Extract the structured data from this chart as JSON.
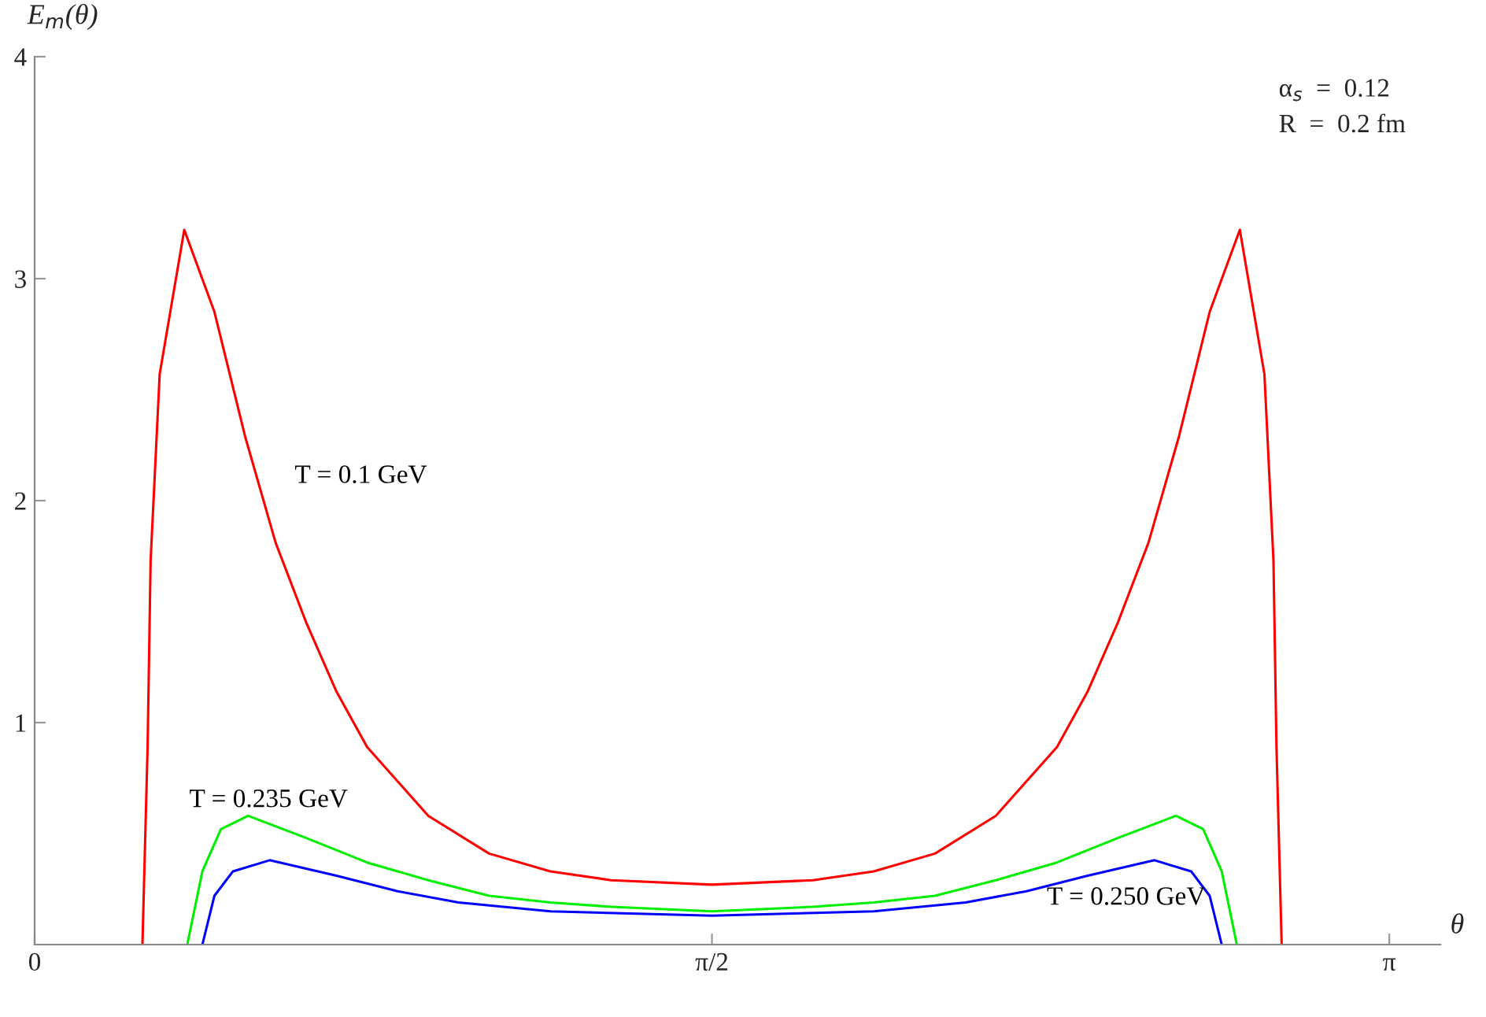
{
  "chart_data": {
    "type": "line",
    "xlabel": "θ",
    "ylabel": "E$_{m}$(θ)",
    "xlim": [
      0,
      3.26
    ],
    "ylim": [
      0,
      4
    ],
    "xticks": [
      0,
      {
        "value": 1.5708,
        "label": "π/2"
      },
      {
        "value": 3.1416,
        "label": "π"
      }
    ],
    "yticks": [
      1,
      2,
      3,
      4
    ],
    "grid": false,
    "legend": false,
    "line_style": "solid",
    "marker": "none",
    "annotations": [
      "α$_{s}$  =  0.12",
      "R  =  0.2 fm"
    ],
    "series": [
      {
        "name": "T = 0.1 GeV",
        "color": "#ff0000",
        "x": [
          0.25,
          0.262,
          0.269,
          0.29,
          0.347,
          0.417,
          0.488,
          0.559,
          0.63,
          0.7,
          0.771,
          0.913,
          1.054,
          1.196,
          1.337,
          1.571,
          1.805,
          1.946,
          2.088,
          2.229,
          2.371,
          2.442,
          2.512,
          2.583,
          2.654,
          2.725,
          2.795,
          2.852,
          2.873,
          2.88,
          2.892
        ],
        "values": [
          0,
          0.89,
          1.73,
          2.57,
          3.22,
          2.85,
          2.29,
          1.81,
          1.45,
          1.14,
          0.89,
          0.58,
          0.41,
          0.33,
          0.29,
          0.27,
          0.29,
          0.33,
          0.41,
          0.58,
          0.89,
          1.14,
          1.45,
          1.81,
          2.29,
          2.85,
          3.22,
          2.57,
          1.73,
          0.89,
          0
        ]
      },
      {
        "name": "T = 0.235 GeV",
        "color": "#00ee00",
        "x": [
          0.354,
          0.389,
          0.432,
          0.495,
          0.63,
          0.771,
          0.913,
          1.054,
          1.196,
          1.337,
          1.571,
          1.805,
          1.946,
          2.088,
          2.229,
          2.371,
          2.512,
          2.647,
          2.71,
          2.753,
          2.788
        ],
        "values": [
          0,
          0.33,
          0.52,
          0.58,
          0.48,
          0.37,
          0.29,
          0.22,
          0.19,
          0.17,
          0.15,
          0.17,
          0.19,
          0.22,
          0.29,
          0.37,
          0.48,
          0.58,
          0.52,
          0.33,
          0
        ]
      },
      {
        "name": "T = 0.250 GeV",
        "color": "#0000ff",
        "x": [
          0.389,
          0.417,
          0.46,
          0.545,
          0.7,
          0.842,
          0.983,
          1.196,
          1.571,
          1.946,
          2.159,
          2.3,
          2.442,
          2.597,
          2.682,
          2.725,
          2.753
        ],
        "values": [
          0,
          0.22,
          0.33,
          0.38,
          0.31,
          0.24,
          0.19,
          0.15,
          0.13,
          0.15,
          0.19,
          0.24,
          0.31,
          0.38,
          0.33,
          0.22,
          0
        ]
      }
    ]
  }
}
